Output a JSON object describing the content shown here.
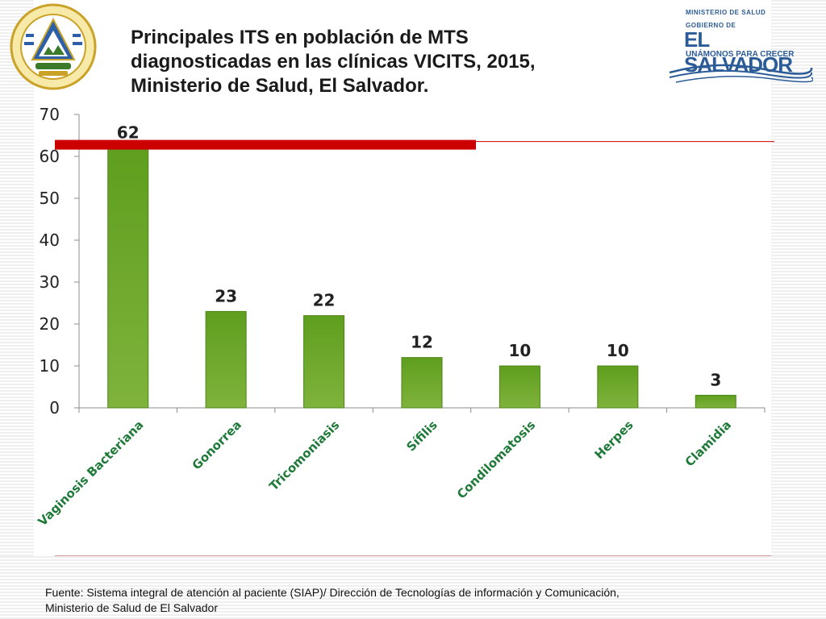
{
  "title_lines": [
    "Principales ITS en población de MTS",
    "diagnosticadas en las clínicas VICITS, 2015,",
    "Ministerio de Salud, El Salvador."
  ],
  "logo": {
    "ministry": "MINISTERIO DE SALUD",
    "gobierno": "GOBIERNO DE",
    "country": "EL SALVADOR",
    "slogan": "UNÁMONOS PARA CRECER",
    "brand_color": "#2c5c97"
  },
  "seal": {
    "ring_text": "REPUBLICA DE EL SALVADOR EN LA AMERICA CENTRAL",
    "colors": {
      "gold": "#c9a227",
      "blue": "#2d5fa8",
      "green": "#3a7a2a"
    }
  },
  "chart_data": {
    "type": "bar",
    "categories": [
      "Vaginosis Bacteriana",
      "Gonorrea",
      "Tricomoniasis",
      "Sífilis",
      "Condilomatosis",
      "Herpes",
      "Clamidia"
    ],
    "values": [
      62,
      23,
      22,
      12,
      10,
      10,
      3
    ],
    "data_labels": [
      "62",
      "23",
      "22",
      "12",
      "10",
      "10",
      "3"
    ],
    "y_ticks": [
      "0",
      "10",
      "20",
      "30",
      "40",
      "50",
      "60",
      "70"
    ],
    "ylim": [
      0,
      70
    ],
    "grid": false,
    "bar_color": "#5f9e1e",
    "highlight_line_color": "#cc0000",
    "title": "",
    "xlabel": "",
    "ylabel": ""
  },
  "source_lines": [
    "Fuente: Sistema integral de atención al paciente (SIAP)/ Dirección de Tecnologías de información y Comunicación,",
    "Ministerio de Salud de El Salvador"
  ]
}
